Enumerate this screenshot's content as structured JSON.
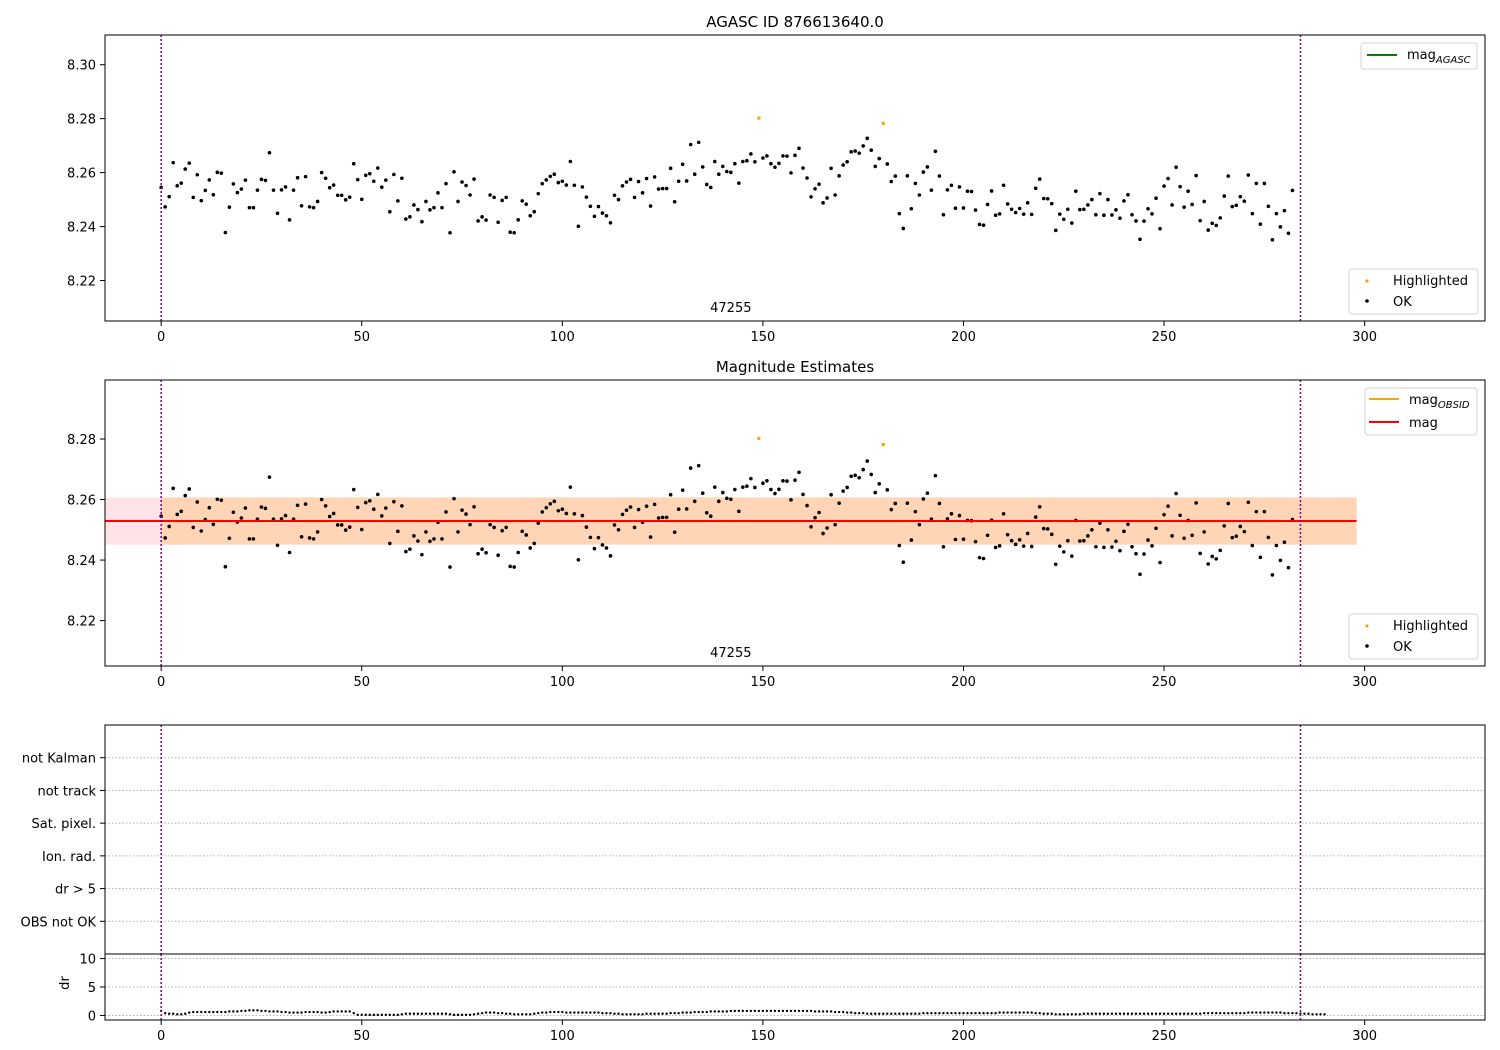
{
  "chart_data": [
    {
      "type": "scatter",
      "title": "AGASC ID 876613640.0",
      "xlim": [
        -14,
        330
      ],
      "ylim": [
        8.205,
        8.311
      ],
      "xticks": [
        0,
        50,
        100,
        150,
        200,
        250,
        300
      ],
      "yticks": [
        8.22,
        8.24,
        8.26,
        8.28,
        8.3
      ],
      "ytick_labels": [
        "8.22",
        "8.24",
        "8.26",
        "8.28",
        "8.30"
      ],
      "vlines": [
        0,
        284
      ],
      "obsid_label": {
        "text": "47255",
        "x": 142
      },
      "legend_top": {
        "position": "top-right",
        "entries": [
          {
            "label": "mag",
            "sub": "AGASC",
            "color": "#008000",
            "kind": "line"
          }
        ]
      },
      "legend_bottom": {
        "position": "bottom-right",
        "entries": [
          {
            "label": "Highlighted",
            "color": "#ffa500",
            "kind": "point"
          },
          {
            "label": "OK",
            "color": "#000000",
            "kind": "point"
          }
        ]
      },
      "highlighted_points": [
        {
          "x": 149,
          "y": 8.2802
        },
        {
          "x": 180,
          "y": 8.2782
        }
      ],
      "mag_line": null,
      "band": null
    },
    {
      "type": "scatter",
      "title": "Magnitude Estimates",
      "xlim": [
        -14,
        330
      ],
      "ylim": [
        8.205,
        8.2995
      ],
      "xticks": [
        0,
        50,
        100,
        150,
        200,
        250,
        300
      ],
      "yticks": [
        8.22,
        8.24,
        8.26,
        8.28
      ],
      "ytick_labels": [
        "8.22",
        "8.24",
        "8.26",
        "8.28"
      ],
      "vlines": [
        0,
        284
      ],
      "obsid_label": {
        "text": "47255",
        "x": 142
      },
      "legend_top": {
        "position": "top-right",
        "entries": [
          {
            "label": "mag",
            "sub": "OBSID",
            "color": "#ffa500",
            "kind": "line"
          },
          {
            "label": "mag",
            "sub": "",
            "color": "#ff0000",
            "kind": "line"
          }
        ]
      },
      "legend_bottom": {
        "position": "bottom-right",
        "entries": [
          {
            "label": "Highlighted",
            "color": "#ffa500",
            "kind": "point"
          },
          {
            "label": "OK",
            "color": "#000000",
            "kind": "point"
          }
        ]
      },
      "highlighted_points": [
        {
          "x": 149,
          "y": 8.2802
        },
        {
          "x": 180,
          "y": 8.2782
        }
      ],
      "mag_line": {
        "x0": -14,
        "x1": 298,
        "y": 8.2529,
        "color": "#ff0000"
      },
      "band": {
        "x0": -14,
        "x1": 298,
        "y0": 8.2451,
        "y1": 8.2607,
        "obsid_x0": 0,
        "obsid_x1": 298
      }
    },
    {
      "type": "scatter",
      "title": "",
      "xlim": [
        -14,
        330
      ],
      "ylim": [
        0,
        7
      ],
      "categories": [
        "not Kalman",
        "not track",
        "Sat. pixel.",
        "Ion. rad.",
        "dr > 5",
        "OBS not OK"
      ],
      "vlines": [
        0,
        284
      ]
    },
    {
      "type": "scatter",
      "title": "",
      "ylabel": "dr",
      "xlim": [
        -14,
        330
      ],
      "ylim": [
        -0.8,
        10.8
      ],
      "xticks": [
        0,
        50,
        100,
        150,
        200,
        250,
        300
      ],
      "yticks": [
        0,
        5,
        10
      ],
      "ytick_labels": [
        "0",
        "5",
        "10"
      ],
      "vlines": [
        0,
        284
      ]
    }
  ],
  "mag_series": [
    8.2545,
    8.2473,
    8.2511,
    8.2637,
    8.2551,
    8.2561,
    8.2613,
    8.2635,
    8.2508,
    8.2592,
    8.2496,
    8.2534,
    8.2573,
    8.2518,
    8.2601,
    8.2598,
    8.2378,
    8.2472,
    8.2558,
    8.2526,
    8.2539,
    8.2572,
    8.247,
    8.247,
    8.2535,
    8.2575,
    8.2571,
    8.2674,
    8.2535,
    8.2449,
    8.2536,
    8.2547,
    8.2425,
    8.2535,
    8.2581,
    8.2477,
    8.2585,
    8.2473,
    8.247,
    8.2493,
    8.26,
    8.2579,
    8.2544,
    8.2554,
    8.2516,
    8.2516,
    8.2499,
    8.2509,
    8.2633,
    8.2574,
    8.2501,
    8.259,
    8.2596,
    8.2568,
    8.2617,
    8.2546,
    8.2572,
    8.2455,
    8.2593,
    8.2495,
    8.2579,
    8.2428,
    8.2436,
    8.248,
    8.2463,
    8.2418,
    8.2493,
    8.2462,
    8.247,
    8.2525,
    8.247,
    8.2559,
    8.2377,
    8.2603,
    8.2493,
    8.2565,
    8.2552,
    8.2517,
    8.2576,
    8.2421,
    8.2436,
    8.2424,
    8.2517,
    8.2508,
    8.2416,
    8.2497,
    8.2508,
    8.2379,
    8.2377,
    8.2425,
    8.2495,
    8.2483,
    8.244,
    8.2455,
    8.2522,
    8.2559,
    8.2573,
    8.2586,
    8.2594,
    8.2563,
    8.2568,
    8.2554,
    8.2641,
    8.2553,
    8.2401,
    8.2547,
    8.2509,
    8.2475,
    8.2438,
    8.2474,
    8.245,
    8.244,
    8.2414,
    8.2516,
    8.25,
    8.2551,
    8.2565,
    8.2575,
    8.2508,
    8.2567,
    8.2525,
    8.2578,
    8.2476,
    8.2584,
    8.2539,
    8.2541,
    8.2541,
    8.2616,
    8.2492,
    8.2568,
    8.2631,
    8.2569,
    8.2704,
    8.2594,
    8.2712,
    8.2621,
    8.2556,
    8.2545,
    8.2641,
    8.2594,
    8.2623,
    8.2604,
    8.2601,
    8.2633,
    8.2561,
    8.2641,
    8.2644,
    8.2669,
    8.264,
    8.2662,
    8.2654,
    8.2662,
    8.2633,
    8.262,
    8.2634,
    8.2662,
    8.2661,
    8.2599,
    8.2664,
    8.269,
    8.2617,
    8.258,
    8.251,
    8.254,
    8.2557,
    8.2488,
    8.2506,
    8.2616,
    8.2517,
    8.2588,
    8.2628,
    8.264,
    8.2677,
    8.268,
    8.2672,
    8.2699,
    8.2727,
    8.2683,
    8.2623,
    8.2652,
    8.2508,
    8.2632,
    8.2567,
    8.2587,
    8.2448,
    8.2393,
    8.2588,
    8.2466,
    8.256,
    8.2517,
    8.2602,
    8.2621,
    8.2535,
    8.2679,
    8.2587,
    8.2444,
    8.2536,
    8.2553,
    8.2468,
    8.2547,
    8.2469,
    8.2531,
    8.253,
    8.2461,
    8.2408,
    8.2405,
    8.2482,
    8.2532,
    8.2442,
    8.2447,
    8.2553,
    8.2484,
    8.2464,
    8.2452,
    8.2467,
    8.2446,
    8.2488,
    8.2445,
    8.2542,
    8.2576,
    8.2504,
    8.2503,
    8.2485,
    8.2386,
    8.2446,
    8.2427,
    8.2464,
    8.2413,
    8.2531,
    8.2463,
    8.2464,
    8.248,
    8.25,
    8.2444,
    8.2522,
    8.2442,
    8.25,
    8.2443,
    8.2462,
    8.2431,
    8.2495,
    8.2518,
    8.2444,
    8.2421,
    8.2353,
    8.242,
    8.2466,
    8.2447,
    8.2505,
    8.2392,
    8.255,
    8.2578,
    8.248,
    8.262,
    8.2548,
    8.2472,
    8.2531,
    8.2482,
    8.2589,
    8.2422,
    8.2493,
    8.2387,
    8.2412,
    8.2404,
    8.2432,
    8.2513,
    8.2587,
    8.2474,
    8.2479,
    8.2511,
    8.2494,
    8.2591,
    8.2448,
    8.256,
    8.2409,
    8.256,
    8.2475,
    8.2351,
    8.2448,
    8.2399,
    8.2459,
    8.2375,
    8.2534
  ],
  "dr_series": [
    0.8,
    0.4,
    0.3,
    0.3,
    0.2,
    0.2,
    0.3,
    0.5,
    0.6,
    0.6,
    0.6,
    0.6,
    0.6,
    0.6,
    0.6,
    0.6,
    0.6,
    0.7,
    0.7,
    0.7,
    0.8,
    0.8,
    0.9,
    0.9,
    0.9,
    0.8,
    0.8,
    0.7,
    0.7,
    0.7,
    0.6,
    0.6,
    0.5,
    0.5,
    0.5,
    0.5,
    0.6,
    0.6,
    0.6,
    0.6,
    0.5,
    0.5,
    0.6,
    0.7,
    0.7,
    0.7,
    0.7,
    0.7,
    0.4,
    0.1,
    0.1,
    0.1,
    0.1,
    0.1,
    0.1,
    0.1,
    0.1,
    0.1,
    0.1,
    0.1,
    0.2,
    0.3,
    0.3,
    0.3,
    0.3,
    0.3,
    0.3,
    0.3,
    0.3,
    0.3,
    0.3,
    0.3,
    0.2,
    0.1,
    0.1,
    0.1,
    0.1,
    0.1,
    0.2,
    0.3,
    0.4,
    0.5,
    0.5,
    0.5,
    0.4,
    0.4,
    0.3,
    0.3,
    0.2,
    0.2,
    0.2,
    0.2,
    0.2,
    0.3,
    0.4,
    0.5,
    0.5,
    0.6,
    0.6,
    0.6,
    0.6,
    0.5,
    0.5,
    0.5,
    0.5,
    0.5,
    0.5,
    0.5,
    0.5,
    0.5,
    0.4,
    0.4,
    0.4,
    0.3,
    0.3,
    0.2,
    0.2,
    0.2,
    0.2,
    0.2,
    0.2,
    0.3,
    0.3,
    0.3,
    0.3,
    0.3,
    0.3,
    0.4,
    0.4,
    0.4,
    0.5,
    0.5,
    0.5,
    0.6,
    0.6,
    0.6,
    0.6,
    0.7,
    0.7,
    0.7,
    0.7,
    0.7,
    0.8,
    0.8,
    0.8,
    0.8,
    0.8,
    0.8,
    0.8,
    0.8,
    0.8,
    0.8,
    0.8,
    0.8,
    0.8,
    0.8,
    0.8,
    0.8,
    0.8,
    0.8,
    0.8,
    0.8,
    0.8,
    0.7,
    0.7,
    0.7,
    0.7,
    0.7,
    0.6,
    0.6,
    0.6,
    0.5,
    0.5,
    0.4,
    0.4,
    0.4,
    0.3,
    0.3,
    0.3,
    0.3,
    0.3,
    0.3,
    0.3,
    0.3,
    0.3,
    0.3,
    0.3,
    0.3,
    0.3,
    0.3,
    0.4,
    0.4,
    0.4,
    0.4,
    0.4,
    0.4,
    0.4,
    0.4,
    0.4,
    0.4,
    0.4,
    0.4,
    0.4,
    0.4,
    0.4,
    0.4,
    0.4,
    0.4,
    0.4,
    0.5,
    0.5,
    0.5,
    0.5,
    0.5,
    0.5,
    0.5,
    0.5,
    0.5,
    0.4,
    0.4,
    0.3,
    0.3,
    0.3,
    0.2,
    0.2,
    0.2,
    0.2,
    0.2,
    0.2,
    0.2,
    0.3,
    0.3,
    0.3,
    0.3,
    0.3,
    0.3,
    0.3,
    0.3,
    0.3,
    0.3,
    0.3,
    0.3,
    0.3,
    0.3,
    0.3,
    0.3,
    0.3,
    0.3,
    0.3,
    0.3,
    0.3,
    0.3,
    0.3,
    0.3,
    0.3,
    0.3,
    0.3,
    0.3,
    0.3,
    0.3,
    0.4,
    0.4,
    0.4,
    0.4,
    0.4,
    0.4,
    0.4,
    0.4,
    0.4,
    0.4,
    0.4,
    0.5,
    0.5,
    0.5,
    0.5,
    0.5,
    0.5,
    0.5,
    0.5,
    0.5,
    0.4,
    0.4,
    0.4,
    0.4,
    0.3,
    0.3,
    0.3,
    0.2,
    0.2,
    0.2,
    0.2
  ]
}
